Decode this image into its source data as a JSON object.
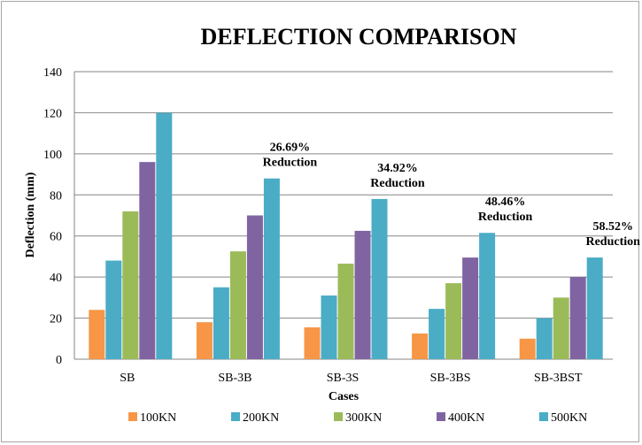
{
  "chart_data": {
    "type": "bar",
    "title": "DEFLECTION COMPARISON",
    "xlabel": "Cases",
    "ylabel": "Deflection (mm)",
    "ylim": [
      0,
      140
    ],
    "yticks": [
      0,
      20,
      40,
      60,
      80,
      100,
      120,
      140
    ],
    "grid": true,
    "legend_position": "bottom",
    "categories": [
      "SB",
      "SB-3B",
      "SB-3S",
      "SB-3BS",
      "SB-3BST"
    ],
    "series": [
      {
        "name": "100KN",
        "color": "#f79646",
        "values": [
          24,
          18,
          15.5,
          12.5,
          10
        ]
      },
      {
        "name": "200KN",
        "color": "#4bacc6",
        "values": [
          48,
          35,
          31,
          24.5,
          20
        ]
      },
      {
        "name": "300KN",
        "color": "#9bbb59",
        "values": [
          72,
          52.5,
          46.5,
          37,
          30
        ]
      },
      {
        "name": "400KN",
        "color": "#8064a2",
        "values": [
          96,
          70,
          62.5,
          49.5,
          40
        ]
      },
      {
        "name": "500KN",
        "color": "#4bacc6",
        "values": [
          120,
          88,
          78,
          61.5,
          49.5
        ]
      }
    ],
    "annotations": [
      {
        "category": "SB-3B",
        "line1": "26.69%",
        "line2": "Reduction"
      },
      {
        "category": "SB-3S",
        "line1": "34.92%",
        "line2": "Reduction"
      },
      {
        "category": "SB-3BS",
        "line1": "48.46%",
        "line2": "Reduction"
      },
      {
        "category": "SB-3BST",
        "line1": "58.52%",
        "line2": "Reduction"
      }
    ]
  }
}
